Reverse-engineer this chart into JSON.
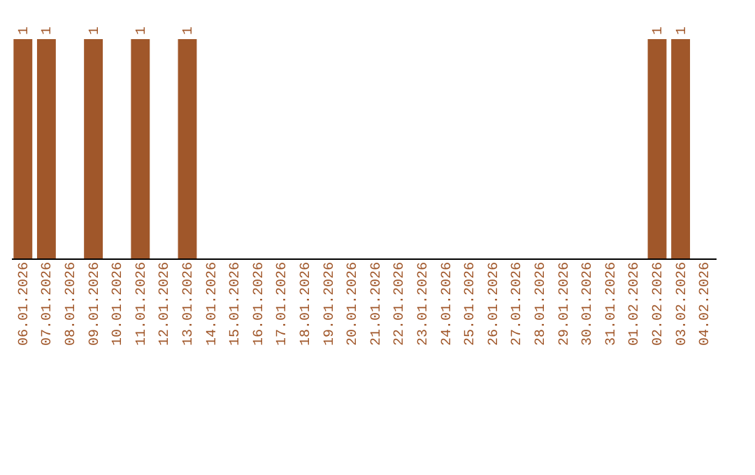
{
  "chart_data": {
    "type": "bar",
    "categories": [
      "06.01.2026",
      "07.01.2026",
      "08.01.2026",
      "09.01.2026",
      "10.01.2026",
      "11.01.2026",
      "12.01.2026",
      "13.01.2026",
      "14.01.2026",
      "15.01.2026",
      "16.01.2026",
      "17.01.2026",
      "18.01.2026",
      "19.01.2026",
      "20.01.2026",
      "21.01.2026",
      "22.01.2026",
      "23.01.2026",
      "24.01.2026",
      "25.01.2026",
      "26.01.2026",
      "27.01.2026",
      "28.01.2026",
      "29.01.2026",
      "30.01.2026",
      "31.01.2026",
      "01.02.2026",
      "02.02.2026",
      "03.02.2026",
      "04.02.2026"
    ],
    "values": [
      1,
      1,
      0,
      1,
      0,
      1,
      0,
      1,
      0,
      0,
      0,
      0,
      0,
      0,
      0,
      0,
      0,
      0,
      0,
      0,
      0,
      0,
      0,
      0,
      0,
      0,
      0,
      1,
      1,
      0
    ],
    "value_labels": [
      "1",
      "1",
      null,
      "1",
      null,
      "1",
      null,
      "1",
      null,
      null,
      null,
      null,
      null,
      null,
      null,
      null,
      null,
      null,
      null,
      null,
      null,
      null,
      null,
      null,
      null,
      null,
      null,
      "1",
      "1",
      null
    ],
    "color": "#a0572a",
    "grid": false,
    "tick_labels": "x"
  }
}
